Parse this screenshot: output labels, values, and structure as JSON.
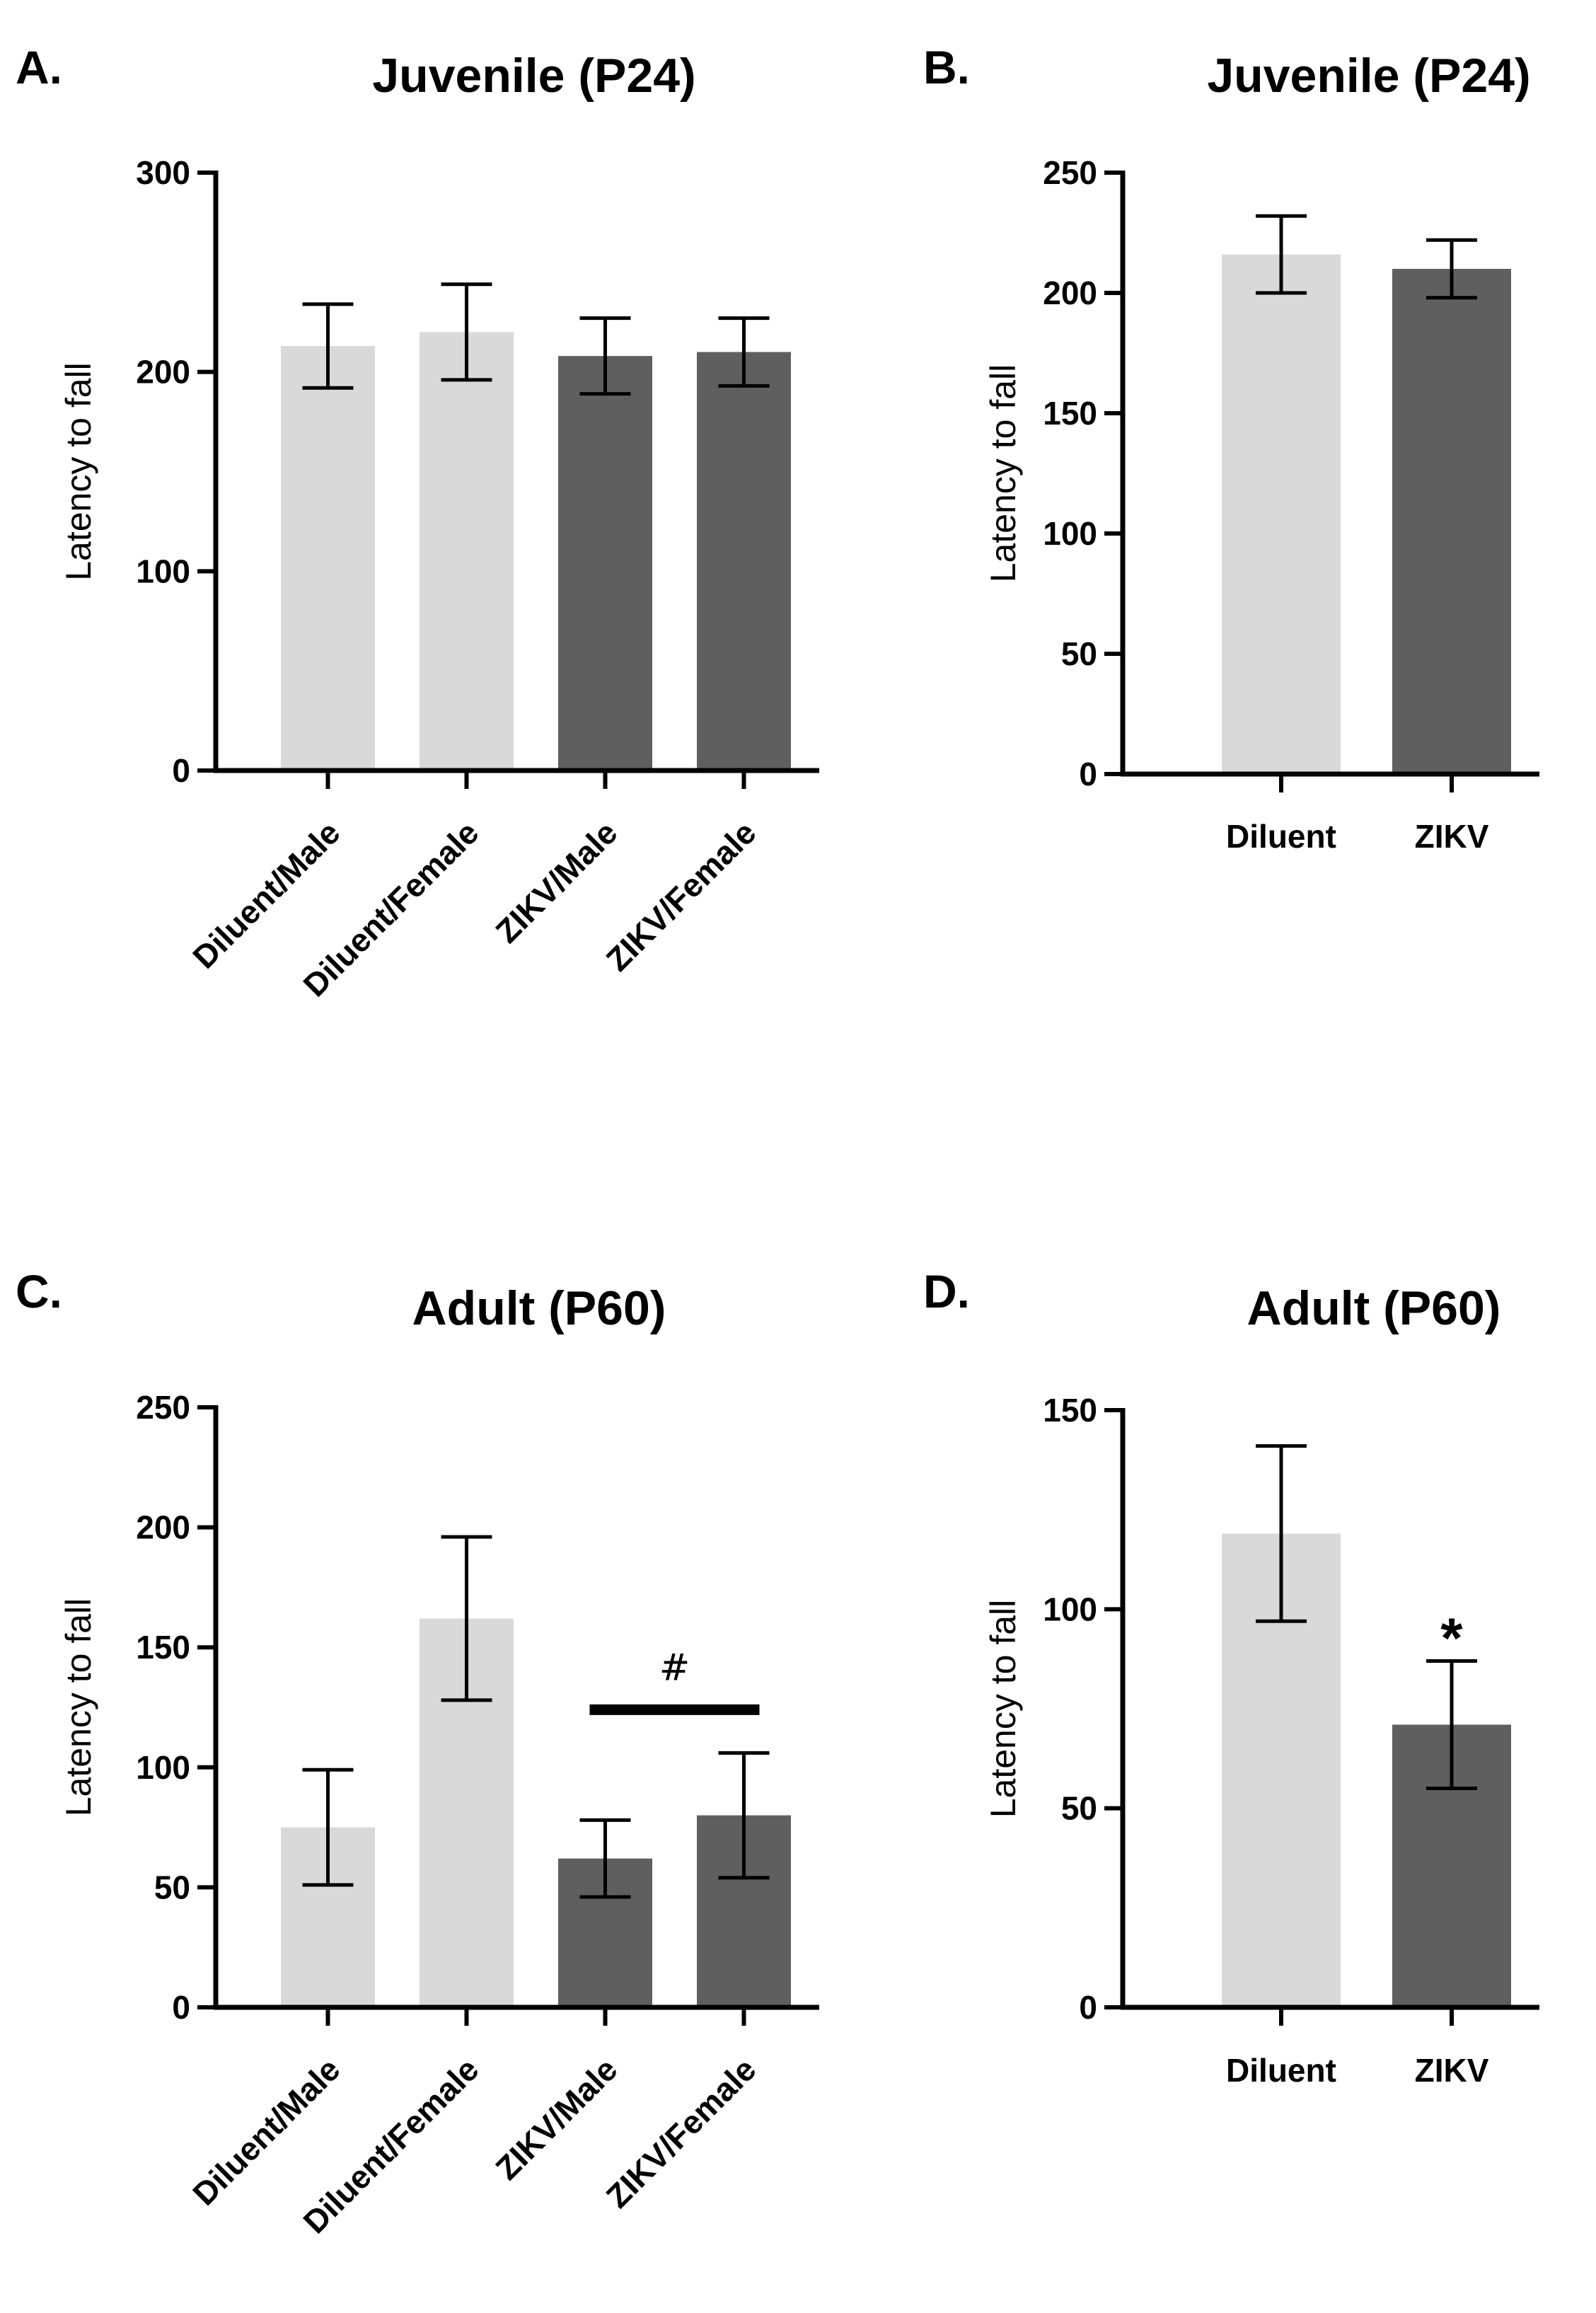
{
  "colors": {
    "diluent": "#d9d9d9",
    "zikv": "#5f5f5f",
    "axis": "#000000"
  },
  "chart_data": [
    {
      "letter": "A.",
      "type": "bar",
      "title": "Juvenile (P24)",
      "xlabel": "",
      "ylabel": "Latency to fall",
      "ylim": [
        0,
        300
      ],
      "yticks": [
        0,
        100,
        200,
        300
      ],
      "categories": [
        "Diluent/Male",
        "Diluent/Female",
        "ZIKV/Male",
        "ZIKV/Female"
      ],
      "values": [
        213,
        220,
        208,
        210
      ],
      "errors": [
        21,
        24,
        19,
        17
      ],
      "groups": [
        "diluent",
        "diluent",
        "zikv",
        "zikv"
      ],
      "rotated_labels": true,
      "grid": false
    },
    {
      "letter": "B.",
      "type": "bar",
      "title": "Juvenile (P24)",
      "xlabel": "",
      "ylabel": "Latency to fall",
      "ylim": [
        0,
        250
      ],
      "yticks": [
        0,
        50,
        100,
        150,
        200,
        250
      ],
      "categories": [
        "Diluent",
        "ZIKV"
      ],
      "values": [
        216,
        210
      ],
      "errors": [
        16,
        12
      ],
      "groups": [
        "diluent",
        "zikv"
      ],
      "rotated_labels": false,
      "grid": false
    },
    {
      "letter": "C.",
      "type": "bar",
      "title": "Adult (P60)",
      "xlabel": "",
      "ylabel": "Latency to fall",
      "ylim": [
        0,
        250
      ],
      "yticks": [
        0,
        50,
        100,
        150,
        200,
        250
      ],
      "categories": [
        "Diluent/Male",
        "Diluent/Female",
        "ZIKV/Male",
        "ZIKV/Female"
      ],
      "values": [
        75,
        162,
        62,
        80
      ],
      "errors": [
        24,
        34,
        16,
        26
      ],
      "groups": [
        "diluent",
        "diluent",
        "zikv",
        "zikv"
      ],
      "rotated_labels": true,
      "grid": false,
      "annotations": [
        {
          "text": "#",
          "kind": "bracket",
          "from_category": 2,
          "to_category": 3,
          "y": 124
        }
      ]
    },
    {
      "letter": "D.",
      "type": "bar",
      "title": "Adult (P60)",
      "xlabel": "",
      "ylabel": "Latency to fall",
      "ylim": [
        0,
        150
      ],
      "yticks": [
        0,
        50,
        100,
        150
      ],
      "categories": [
        "Diluent",
        "ZIKV"
      ],
      "values": [
        119,
        71
      ],
      "errors": [
        22,
        16
      ],
      "groups": [
        "diluent",
        "zikv"
      ],
      "rotated_labels": false,
      "grid": false,
      "annotations": [
        {
          "text": "*",
          "kind": "star",
          "category": 1,
          "y": 95
        }
      ]
    }
  ]
}
